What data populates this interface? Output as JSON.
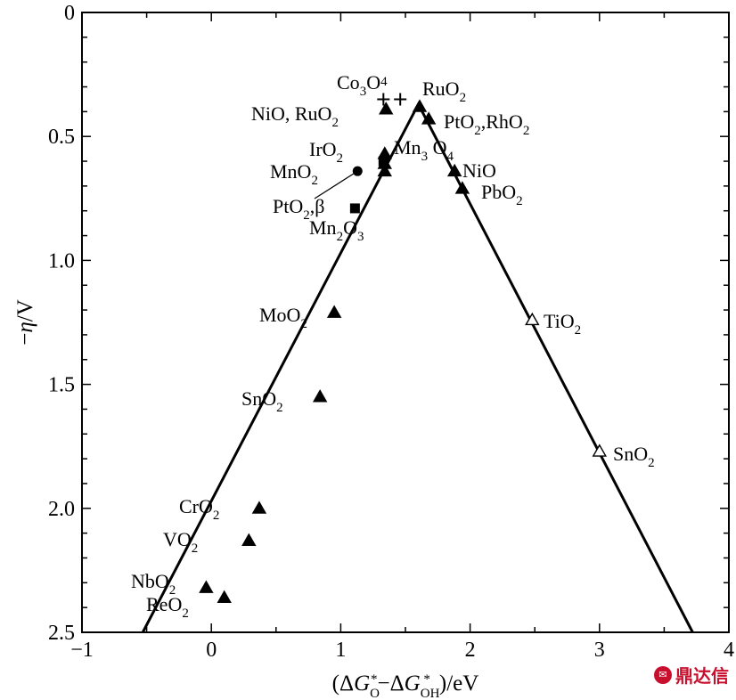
{
  "chart_data": {
    "type": "scatter",
    "title": "",
    "xlabel": "(ΔG*O−ΔG*OH)/eV",
    "ylabel": "−η/V",
    "xlim": [
      -1,
      4
    ],
    "ylim": [
      0,
      2.5
    ],
    "y_inverted": true,
    "x_ticks": [
      "−1",
      "0",
      "1",
      "2",
      "3",
      "4"
    ],
    "y_ticks": [
      "0",
      "0.5",
      "1.0",
      "1.5",
      "2.0",
      "2.5"
    ],
    "grid": false,
    "volcano_line": [
      {
        "x": -0.53,
        "y": 2.5
      },
      {
        "x": 1.6,
        "y": 0.37
      },
      {
        "x": 3.72,
        "y": 2.5
      }
    ],
    "points": [
      {
        "label": "Co3O4",
        "marker": "plus",
        "x": 1.33,
        "y": 0.35
      },
      {
        "label": "",
        "marker": "plus",
        "x": 1.46,
        "y": 0.35
      },
      {
        "label": "RuO2",
        "marker": "triangle",
        "x": 1.61,
        "y": 0.38
      },
      {
        "label": "NiO, RuO2",
        "marker": "triangle",
        "x": 1.35,
        "y": 0.39
      },
      {
        "label": "PtO2,RhO2",
        "marker": "triangle",
        "x": 1.68,
        "y": 0.43
      },
      {
        "label": "Mn3O4",
        "marker": "triangle",
        "x": 1.34,
        "y": 0.57
      },
      {
        "label": "IrO2",
        "marker": "triangle",
        "x": 1.34,
        "y": 0.61
      },
      {
        "label": "MnO2",
        "marker": "circle",
        "x": 1.13,
        "y": 0.64
      },
      {
        "label": "",
        "marker": "triangle",
        "x": 1.34,
        "y": 0.64
      },
      {
        "label": "NiO",
        "marker": "triangle",
        "x": 1.88,
        "y": 0.64
      },
      {
        "label": "PbO2",
        "marker": "triangle",
        "x": 1.94,
        "y": 0.71
      },
      {
        "label": "PtO2,β",
        "marker": "square",
        "x": 1.11,
        "y": 0.79
      },
      {
        "label": "Mn2O3",
        "marker": "square",
        "x": 1.33,
        "y": 0.6
      },
      {
        "label": "MoO2",
        "marker": "triangle",
        "x": 0.95,
        "y": 1.21
      },
      {
        "label": "TiO2",
        "marker": "triangle-open",
        "x": 2.48,
        "y": 1.24
      },
      {
        "label": "SnO2",
        "marker": "triangle",
        "x": 0.84,
        "y": 1.55
      },
      {
        "label": "SnO2",
        "marker": "triangle-open",
        "x": 3.0,
        "y": 1.77
      },
      {
        "label": "CrO2",
        "marker": "triangle",
        "x": 0.37,
        "y": 2.0
      },
      {
        "label": "VO2",
        "marker": "triangle",
        "x": 0.29,
        "y": 2.13
      },
      {
        "label": "NbO2",
        "marker": "triangle",
        "x": -0.04,
        "y": 2.32
      },
      {
        "label": "ReO2",
        "marker": "triangle",
        "x": 0.1,
        "y": 2.36
      }
    ]
  },
  "watermark": {
    "icon": "dingdaxin-logo-icon",
    "text": "鼎达信",
    "color": "#c8102e"
  }
}
